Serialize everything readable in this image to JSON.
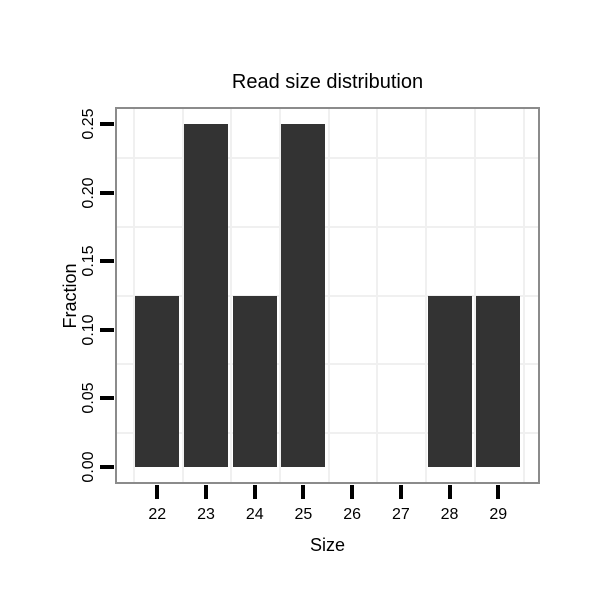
{
  "chart": {
    "title": "Read size distribution",
    "x_axis": {
      "label": "Size"
    },
    "y_axis": {
      "label": "Fraction"
    }
  },
  "chart_data": {
    "type": "bar",
    "title": "Read size distribution",
    "xlabel": "Size",
    "ylabel": "Fraction",
    "categories": [
      "22",
      "23",
      "24",
      "25",
      "26",
      "27",
      "28",
      "29"
    ],
    "values": [
      0.125,
      0.25,
      0.125,
      0.25,
      0,
      0,
      0.125,
      0.125
    ],
    "ytick_labels": [
      "0.00",
      "0.05",
      "0.10",
      "0.15",
      "0.20",
      "0.25"
    ],
    "ytick_values": [
      0,
      0.05,
      0.1,
      0.15,
      0.2,
      0.25
    ],
    "ylim": [
      -0.0125,
      0.2625
    ],
    "grid": "faint minor gridlines midway between ticks, both directions",
    "legend": "none",
    "colors": {
      "bar": "#333333",
      "panel_border": "#8b8b8b",
      "gridline": "#f0f0f0",
      "tick": "#000000",
      "text": "#000000",
      "background": "#ffffff"
    }
  }
}
